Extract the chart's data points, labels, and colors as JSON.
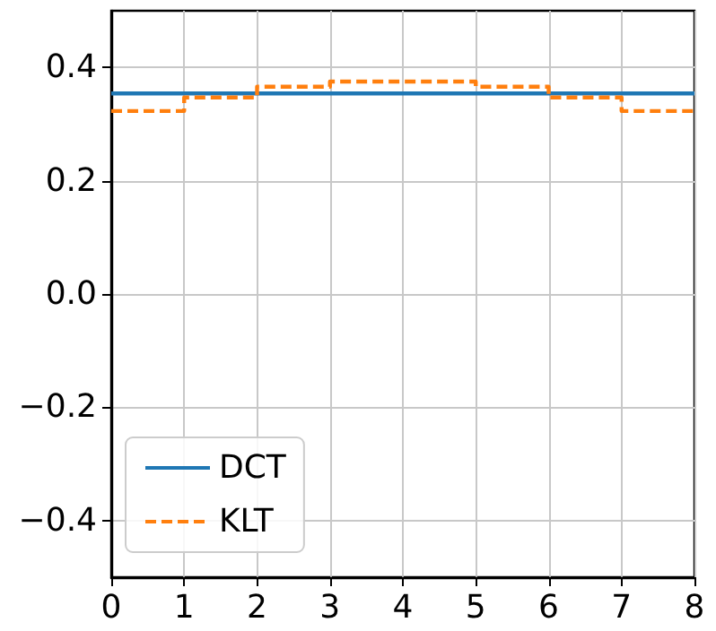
{
  "chart_data": {
    "type": "line",
    "xlim": [
      0,
      8
    ],
    "xticks": [
      0,
      1,
      2,
      3,
      4,
      5,
      6,
      7,
      8
    ],
    "ylim": [
      -0.5,
      0.5
    ],
    "yticks": [
      {
        "value": -0.4,
        "label": "−0.4"
      },
      {
        "value": -0.2,
        "label": "−0.2"
      },
      {
        "value": 0,
        "label": "0.0"
      },
      {
        "value": 0.2,
        "label": "0.2"
      },
      {
        "value": 0.4,
        "label": "0.4"
      }
    ],
    "grid": true,
    "legend": "bottom left",
    "marker": "none",
    "series": [
      {
        "name": "DCT",
        "color": "#1f77b4",
        "line_style": "solid",
        "x": [
          0,
          8
        ],
        "values": [
          0.354,
          0.354
        ]
      },
      {
        "name": "KLT",
        "type": "step",
        "color": "#ff7f0e",
        "line_style": "dashed",
        "x": [
          0,
          1,
          2,
          3,
          4,
          5,
          6,
          7,
          8
        ],
        "values": [
          0.323,
          0.347,
          0.366,
          0.375,
          0.375,
          0.366,
          0.347,
          0.323,
          0.323
        ]
      }
    ]
  }
}
